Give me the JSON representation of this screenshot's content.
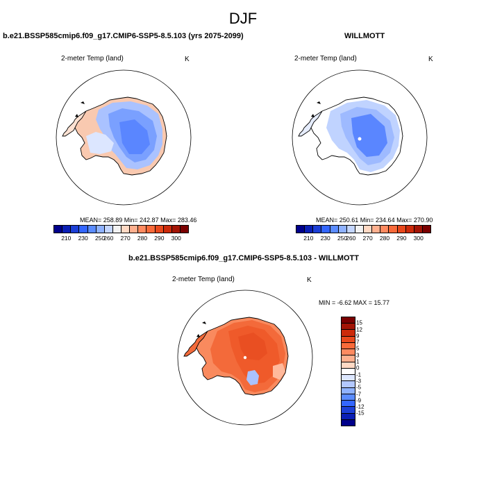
{
  "title": "DJF",
  "panels": [
    {
      "title": "b.e21.BSSP585cmip6.f09_g17.CMIP6-SSP5-8.5.103 (yrs 2075-2099)",
      "variable": "2-meter Temp (land)",
      "units": "K",
      "stats": "MEAN= 258.89  Min= 242.87  Max= 283.46"
    },
    {
      "title": "WILLMOTT",
      "variable": "2-meter Temp (land)",
      "units": "K",
      "stats": "MEAN= 250.61  Min= 234.64  Max= 270.90"
    },
    {
      "title": "b.e21.BSSP585cmip6.f09_g17.CMIP6-SSP5-8.5.103 - WILLMOTT",
      "variable": "2-meter Temp (land)",
      "units": "K",
      "stats": "MIN =  -6.62 MAX =  15.77"
    }
  ],
  "abs_colorbar": {
    "colors": [
      "#00008b",
      "#0a1fb5",
      "#1c3fd6",
      "#3366ff",
      "#5b8cff",
      "#8fb2ff",
      "#c4d6ff",
      "#f2f2f2",
      "#ffd9c4",
      "#ffb08f",
      "#ff8a60",
      "#f96a3a",
      "#e8481c",
      "#cc2a0a",
      "#a31405",
      "#7a0000"
    ],
    "labels": [
      "210",
      "230",
      "250",
      "260",
      "270",
      "280",
      "290",
      "300"
    ]
  },
  "diff_colorbar": {
    "colors": [
      "#7a0000",
      "#a31405",
      "#cc2a0a",
      "#e8481c",
      "#f96a3a",
      "#ff8a60",
      "#ffb08f",
      "#ffd9c4",
      "#ffffff",
      "#dde7ff",
      "#b3c8ff",
      "#8fb2ff",
      "#5b8cff",
      "#3366ff",
      "#1c3fd6",
      "#0a1fb5",
      "#00008b"
    ],
    "labels": [
      "15",
      "12",
      "9",
      "7",
      "5",
      "3",
      "1",
      "0",
      "-1",
      "-3",
      "-5",
      "-7",
      "-9",
      "-12",
      "-15"
    ]
  },
  "maps": {
    "model": {
      "ocean": "#ffffff",
      "colors": [
        "#f9c9b0",
        "#ffe2d3",
        "#dce6ff",
        "#aac2ff",
        "#7aa0ff",
        "#5a86ff",
        "#4a77ff"
      ]
    },
    "obs": {
      "ocean": "#ffffff",
      "colors": [
        "#ffffff",
        "#e6edff",
        "#c0d3ff",
        "#9ebaff",
        "#7aa0ff",
        "#5a86ff",
        "#4a77ff"
      ]
    },
    "diff": {
      "ocean": "#ffffff",
      "colors": [
        "#f98a5e",
        "#f36a3a",
        "#ef5a2a",
        "#e94f22",
        "#ffb99c",
        "#aac2ff",
        "#ffd4c2"
      ]
    }
  }
}
